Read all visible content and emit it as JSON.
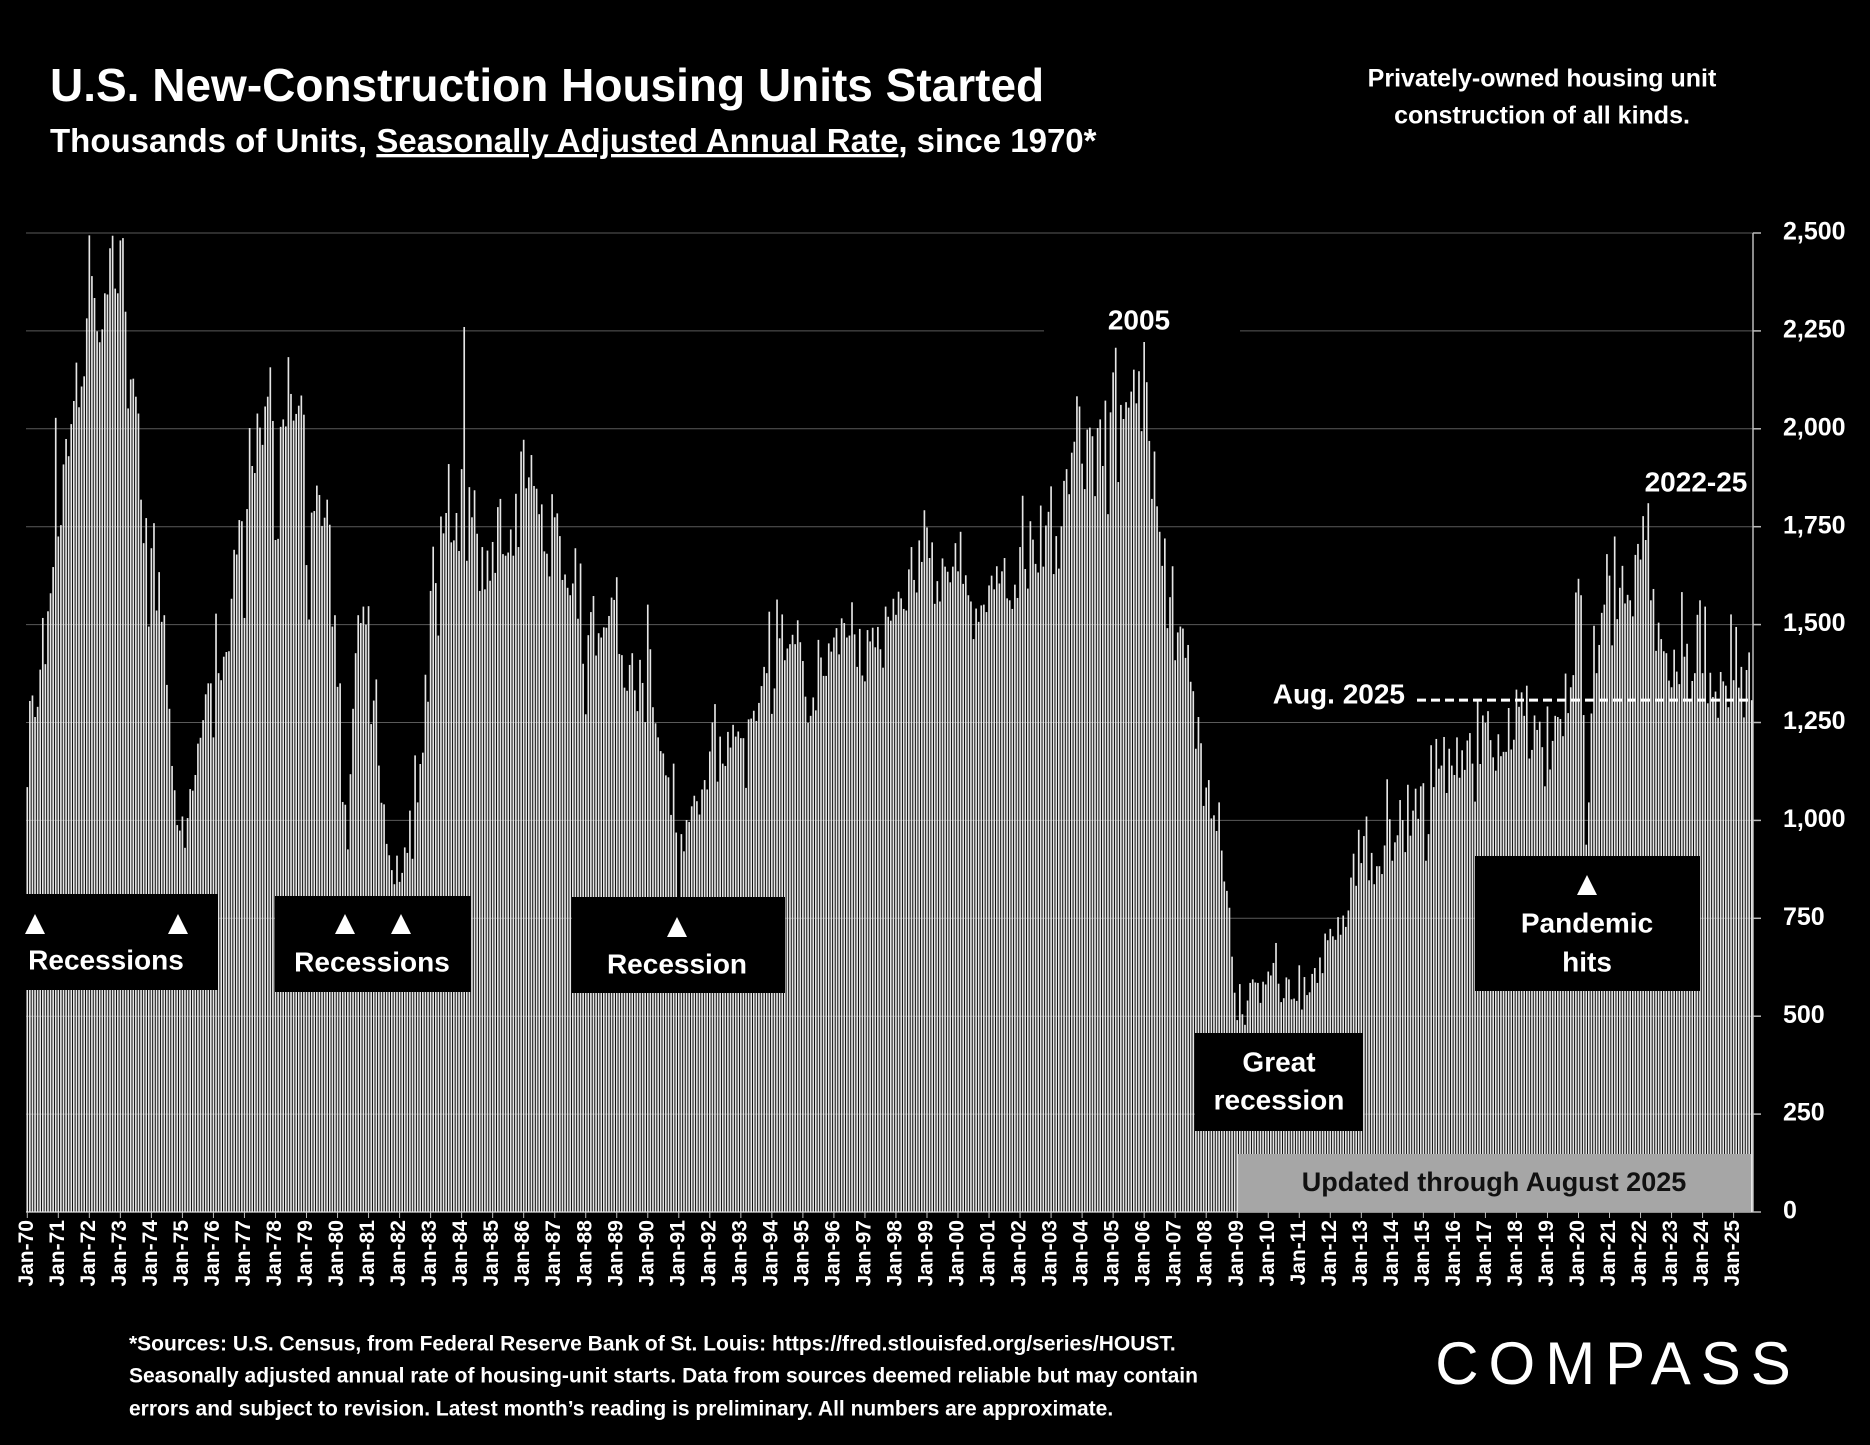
{
  "chart_data": {
    "type": "bar",
    "title": "U.S. New-Construction Housing Units Started",
    "subtitle": [
      "Thousands of Units, ",
      "Seasonally Adjusted Annual Rate",
      ", since 1970*"
    ],
    "note": [
      "Privately-owned housing unit",
      "construction of all kinds."
    ],
    "color": "#e6e6e6",
    "grid": true,
    "ylim": [
      0,
      2500
    ],
    "yticks": [
      0,
      250,
      500,
      750,
      {
        "value": 1000,
        "label": "1,000"
      },
      {
        "value": 1250,
        "label": "1,250"
      },
      {
        "value": 1500,
        "label": "1,500"
      },
      {
        "value": 1750,
        "label": "1,750"
      },
      {
        "value": 2000,
        "label": "2,000"
      },
      {
        "value": 2250,
        "label": "2,250"
      },
      {
        "value": 2500,
        "label": "2,500"
      }
    ],
    "categories": [
      "Jan-70",
      null,
      null,
      null,
      null,
      null,
      null,
      null,
      null,
      null,
      null,
      null,
      "Jan-71",
      null,
      null,
      null,
      null,
      null,
      null,
      null,
      null,
      null,
      null,
      null,
      "Jan-72",
      null,
      null,
      null,
      null,
      null,
      null,
      null,
      null,
      null,
      null,
      null,
      "Jan-73",
      null,
      null,
      null,
      null,
      null,
      null,
      null,
      null,
      null,
      null,
      null,
      "Jan-74",
      null,
      null,
      null,
      null,
      null,
      null,
      null,
      null,
      null,
      null,
      null,
      "Jan-75",
      null,
      null,
      null,
      null,
      null,
      null,
      null,
      null,
      null,
      null,
      null,
      "Jan-76",
      null,
      null,
      null,
      null,
      null,
      null,
      null,
      null,
      null,
      null,
      null,
      "Jan-77",
      null,
      null,
      null,
      null,
      null,
      null,
      null,
      null,
      null,
      null,
      null,
      "Jan-78",
      null,
      null,
      null,
      null,
      null,
      null,
      null,
      null,
      null,
      null,
      null,
      "Jan-79",
      null,
      null,
      null,
      null,
      null,
      null,
      null,
      null,
      null,
      null,
      null,
      "Jan-80",
      null,
      null,
      null,
      null,
      null,
      null,
      null,
      null,
      null,
      null,
      null,
      "Jan-81",
      null,
      null,
      null,
      null,
      null,
      null,
      null,
      null,
      null,
      null,
      null,
      "Jan-82",
      null,
      null,
      null,
      null,
      null,
      null,
      null,
      null,
      null,
      null,
      null,
      "Jan-83",
      null,
      null,
      null,
      null,
      null,
      null,
      null,
      null,
      null,
      null,
      null,
      "Jan-84",
      null,
      null,
      null,
      null,
      null,
      null,
      null,
      null,
      null,
      null,
      null,
      "Jan-85",
      null,
      null,
      null,
      null,
      null,
      null,
      null,
      null,
      null,
      null,
      null,
      "Jan-86",
      null,
      null,
      null,
      null,
      null,
      null,
      null,
      null,
      null,
      null,
      null,
      "Jan-87",
      null,
      null,
      null,
      null,
      null,
      null,
      null,
      null,
      null,
      null,
      null,
      "Jan-88",
      null,
      null,
      null,
      null,
      null,
      null,
      null,
      null,
      null,
      null,
      null,
      "Jan-89",
      null,
      null,
      null,
      null,
      null,
      null,
      null,
      null,
      null,
      null,
      null,
      "Jan-90",
      null,
      null,
      null,
      null,
      null,
      null,
      null,
      null,
      null,
      null,
      null,
      "Jan-91",
      null,
      null,
      null,
      null,
      null,
      null,
      null,
      null,
      null,
      null,
      null,
      "Jan-92",
      null,
      null,
      null,
      null,
      null,
      null,
      null,
      null,
      null,
      null,
      null,
      "Jan-93",
      null,
      null,
      null,
      null,
      null,
      null,
      null,
      null,
      null,
      null,
      null,
      "Jan-94",
      null,
      null,
      null,
      null,
      null,
      null,
      null,
      null,
      null,
      null,
      null,
      "Jan-95",
      null,
      null,
      null,
      null,
      null,
      null,
      null,
      null,
      null,
      null,
      null,
      "Jan-96",
      null,
      null,
      null,
      null,
      null,
      null,
      null,
      null,
      null,
      null,
      null,
      "Jan-97",
      null,
      null,
      null,
      null,
      null,
      null,
      null,
      null,
      null,
      null,
      null,
      "Jan-98",
      null,
      null,
      null,
      null,
      null,
      null,
      null,
      null,
      null,
      null,
      null,
      "Jan-99",
      null,
      null,
      null,
      null,
      null,
      null,
      null,
      null,
      null,
      null,
      null,
      "Jan-00",
      null,
      null,
      null,
      null,
      null,
      null,
      null,
      null,
      null,
      null,
      null,
      "Jan-01",
      null,
      null,
      null,
      null,
      null,
      null,
      null,
      null,
      null,
      null,
      null,
      "Jan-02",
      null,
      null,
      null,
      null,
      null,
      null,
      null,
      null,
      null,
      null,
      null,
      "Jan-03",
      null,
      null,
      null,
      null,
      null,
      null,
      null,
      null,
      null,
      null,
      null,
      "Jan-04",
      null,
      null,
      null,
      null,
      null,
      null,
      null,
      null,
      null,
      null,
      null,
      "Jan-05",
      null,
      null,
      null,
      null,
      null,
      null,
      null,
      null,
      null,
      null,
      null,
      "Jan-06",
      null,
      null,
      null,
      null,
      null,
      null,
      null,
      null,
      null,
      null,
      null,
      "Jan-07",
      null,
      null,
      null,
      null,
      null,
      null,
      null,
      null,
      null,
      null,
      null,
      "Jan-08",
      null,
      null,
      null,
      null,
      null,
      null,
      null,
      null,
      null,
      null,
      null,
      "Jan-09",
      null,
      null,
      null,
      null,
      null,
      null,
      null,
      null,
      null,
      null,
      null,
      "Jan-10",
      null,
      null,
      null,
      null,
      null,
      null,
      null,
      null,
      null,
      null,
      null,
      "Jan-11",
      null,
      null,
      null,
      null,
      null,
      null,
      null,
      null,
      null,
      null,
      null,
      "Jan-12",
      null,
      null,
      null,
      null,
      null,
      null,
      null,
      null,
      null,
      null,
      null,
      "Jan-13",
      null,
      null,
      null,
      null,
      null,
      null,
      null,
      null,
      null,
      null,
      null,
      "Jan-14",
      null,
      null,
      null,
      null,
      null,
      null,
      null,
      null,
      null,
      null,
      null,
      "Jan-15",
      null,
      null,
      null,
      null,
      null,
      null,
      null,
      null,
      null,
      null,
      null,
      "Jan-16",
      null,
      null,
      null,
      null,
      null,
      null,
      null,
      null,
      null,
      null,
      null,
      "Jan-17",
      null,
      null,
      null,
      null,
      null,
      null,
      null,
      null,
      null,
      null,
      null,
      "Jan-18",
      null,
      null,
      null,
      null,
      null,
      null,
      null,
      null,
      null,
      null,
      null,
      "Jan-19",
      null,
      null,
      null,
      null,
      null,
      null,
      null,
      null,
      null,
      null,
      null,
      "Jan-20",
      null,
      null,
      null,
      null,
      null,
      null,
      null,
      null,
      null,
      null,
      null,
      "Jan-21",
      null,
      null,
      null,
      null,
      null,
      null,
      null,
      null,
      null,
      null,
      null,
      "Jan-22",
      null,
      null,
      null,
      null,
      null,
      null,
      null,
      null,
      null,
      null,
      null,
      "Jan-23",
      null,
      null,
      null,
      null,
      null,
      null,
      null,
      null,
      null,
      null,
      null,
      "Jan-24",
      null,
      null,
      null,
      null,
      null,
      null,
      null,
      null,
      null,
      null,
      null,
      "Jan-25",
      null,
      null,
      null,
      null,
      null,
      null,
      null
    ],
    "values": [
      1085,
      1305,
      1319,
      1264,
      1290,
      1385,
      1517,
      1399,
      1534,
      1580,
      1647,
      2028,
      1725,
      1754,
      1909,
      1974,
      1930,
      2012,
      2071,
      2169,
      2055,
      2108,
      2134,
      2282,
      2494,
      2390,
      2334,
      2249,
      2221,
      2254,
      2346,
      2343,
      2461,
      2493,
      2358,
      2346,
      2481,
      2487,
      2299,
      2052,
      2126,
      2128,
      2082,
      2039,
      1819,
      1708,
      1772,
      1495,
      1695,
      1759,
      1536,
      1634,
      1507,
      1524,
      1346,
      1285,
      1139,
      1077,
      988,
      974,
      1010,
      930,
      1006,
      1080,
      1076,
      1116,
      1196,
      1211,
      1256,
      1322,
      1350,
      1350,
      1212,
      1528,
      1376,
      1358,
      1418,
      1430,
      1432,
      1566,
      1691,
      1679,
      1767,
      1764,
      1517,
      1795,
      2002,
      1905,
      1887,
      2039,
      2003,
      1959,
      2057,
      2082,
      2157,
      2020,
      1716,
      1719,
      2005,
      2024,
      2006,
      2183,
      2089,
      2021,
      2038,
      2059,
      2085,
      2036,
      1652,
      1513,
      1786,
      1790,
      1855,
      1831,
      1752,
      1773,
      1819,
      1755,
      1495,
      1524,
      1341,
      1350,
      1047,
      1040,
      926,
      1118,
      1285,
      1427,
      1524,
      1504,
      1546,
      1500,
      1547,
      1246,
      1306,
      1360,
      1140,
      1045,
      1041,
      940,
      911,
      873,
      837,
      910,
      843,
      866,
      931,
      917,
      1025,
      902,
      1166,
      1046,
      1144,
      1173,
      1372,
      1303,
      1586,
      1699,
      1606,
      1472,
      1776,
      1733,
      1785,
      1910,
      1710,
      1715,
      1785,
      1688,
      1897,
      2260,
      1663,
      1851,
      1774,
      1843,
      1732,
      1586,
      1698,
      1590,
      1689,
      1612,
      1711,
      1632,
      1800,
      1821,
      1680,
      1676,
      1684,
      1743,
      1676,
      1834,
      1698,
      1942,
      1972,
      1848,
      1876,
      1933,
      1854,
      1847,
      1782,
      1807,
      1687,
      1681,
      1623,
      1833,
      1774,
      1784,
      1726,
      1614,
      1628,
      1594,
      1575,
      1605,
      1695,
      1515,
      1656,
      1400,
      1271,
      1473,
      1532,
      1573,
      1421,
      1478,
      1467,
      1493,
      1492,
      1522,
      1569,
      1563,
      1621,
      1425,
      1422,
      1339,
      1331,
      1397,
      1427,
      1332,
      1279,
      1410,
      1351,
      1251,
      1551,
      1437,
      1289,
      1248,
      1212,
      1177,
      1171,
      1115,
      1110,
      1014,
      1145,
      969,
      798,
      965,
      921,
      1001,
      996,
      1036,
      1063,
      1049,
      1015,
      1079,
      1103,
      1079,
      1176,
      1250,
      1297,
      1099,
      1214,
      1145,
      1139,
      1226,
      1186,
      1244,
      1214,
      1227,
      1210,
      1210,
      1083,
      1258,
      1260,
      1280,
      1254,
      1300,
      1343,
      1392,
      1376,
      1533,
      1272,
      1337,
      1564,
      1465,
      1526,
      1409,
      1439,
      1450,
      1474,
      1450,
      1511,
      1455,
      1407,
      1316,
      1249,
      1267,
      1314,
      1281,
      1461,
      1416,
      1369,
      1369,
      1452,
      1431,
      1467,
      1491,
      1424,
      1516,
      1504,
      1467,
      1472,
      1557,
      1475,
      1392,
      1489,
      1370,
      1355,
      1486,
      1457,
      1492,
      1442,
      1494,
      1437,
      1390,
      1546,
      1520,
      1510,
      1566,
      1525,
      1584,
      1567,
      1540,
      1536,
      1641,
      1698,
      1614,
      1582,
      1715,
      1660,
      1792,
      1748,
      1670,
      1710,
      1553,
      1611,
      1559,
      1669,
      1648,
      1635,
      1608,
      1648,
      1708,
      1636,
      1737,
      1604,
      1626,
      1575,
      1559,
      1463,
      1541,
      1507,
      1549,
      1551,
      1532,
      1600,
      1625,
      1590,
      1649,
      1605,
      1636,
      1670,
      1567,
      1562,
      1540,
      1602,
      1568,
      1698,
      1829,
      1642,
      1592,
      1764,
      1717,
      1655,
      1633,
      1804,
      1648,
      1753,
      1788,
      1853,
      1629,
      1726,
      1643,
      1751,
      1867,
      1897,
      1833,
      1939,
      1967,
      2083,
      2057,
      1911,
      1846,
      1998,
      2003,
      1981,
      1828,
      2002,
      2024,
      1905,
      2072,
      1782,
      2042,
      2144,
      2207,
      1864,
      2061,
      2025,
      2068,
      2054,
      2095,
      2151,
      2065,
      2147,
      1994,
      2273,
      2119,
      1969,
      1821,
      1942,
      1802,
      1737,
      1650,
      1720,
      1491,
      1570,
      1649,
      1409,
      1480,
      1495,
      1490,
      1415,
      1448,
      1354,
      1330,
      1183,
      1264,
      1197,
      1037,
      1084,
      1103,
      1005,
      1013,
      973,
      1046,
      923,
      844,
      820,
      777,
      652,
      560,
      490,
      582,
      505,
      478,
      540,
      585,
      594,
      586,
      585,
      534,
      588,
      581,
      614,
      604,
      636,
      687,
      583,
      536,
      546,
      599,
      594,
      543,
      545,
      539,
      630,
      517,
      600,
      554,
      561,
      608,
      623,
      585,
      650,
      610,
      711,
      694,
      723,
      704,
      695,
      753,
      708,
      757,
      728,
      770,
      854,
      915,
      833,
      976,
      891,
      960,
      1010,
      847,
      917,
      837,
      883,
      883,
      863,
      936,
      1105,
      1003,
      897,
      944,
      962,
      1052,
      1001,
      919,
      1091,
      961,
      1025,
      1081,
      1004,
      1087,
      1095,
      897,
      965,
      1192,
      1085,
      1208,
      1132,
      1140,
      1213,
      1070,
      1183,
      1140,
      1116,
      1212,
      1109,
      1179,
      1129,
      1204,
      1223,
      1145,
      1048,
      1309,
      1144,
      1268,
      1249,
      1279,
      1205,
      1161,
      1127,
      1220,
      1164,
      1175,
      1175,
      1287,
      1181,
      1206,
      1334,
      1290,
      1327,
      1267,
      1344,
      1158,
      1180,
      1268,
      1231,
      1252,
      1187,
      1087,
      1291,
      1130,
      1203,
      1267,
      1264,
      1259,
      1215,
      1375,
      1274,
      1340,
      1371,
      1582,
      1617,
      1575,
      1269,
      938,
      1046,
      1273,
      1497,
      1376,
      1448,
      1530,
      1551,
      1680,
      1625,
      1447,
      1725,
      1514,
      1594,
      1650,
      1554,
      1576,
      1562,
      1521,
      1678,
      1706,
      1666,
      1777,
      1716,
      1810,
      1562,
      1591,
      1433,
      1505,
      1463,
      1432,
      1427,
      1357,
      1340,
      1436,
      1380,
      1348,
      1583,
      1418,
      1451,
      1305,
      1356,
      1376,
      1525,
      1562,
      1376,
      1546,
      1299,
      1377,
      1315,
      1329,
      1262,
      1379,
      1355,
      1344,
      1289,
      1526,
      1358,
      1494,
      1339,
      1392,
      1263,
      1384,
      1429,
      1307
    ],
    "annotations": {
      "peak_2005": "2005",
      "peak_2022": "2022-25",
      "latest": "Aug. 2025",
      "recessions_1": "Recessions",
      "recessions_2": "Recessions",
      "recession_3": "Recession",
      "great_recession": [
        "Great",
        "recession"
      ],
      "pandemic": [
        "Pandemic",
        "hits"
      ],
      "updated": "Updated through August 2025"
    },
    "source": [
      "*Sources: U.S. Census, from Federal Reserve Bank of St. Louis:  https://fred.stlouisfed.org/series/HOUST.",
      "Seasonally adjusted annual rate of housing-unit starts. Data from sources deemed reliable but may contain",
      "errors and subject to revision. Latest month’s reading is preliminary. All numbers are approximate."
    ],
    "logo": "COMPASS"
  }
}
